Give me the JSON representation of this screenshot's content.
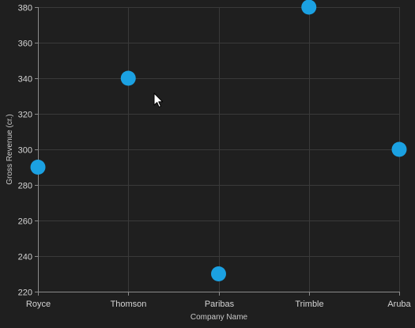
{
  "chart_data": {
    "type": "scatter",
    "xlabel": "Company Name",
    "ylabel": "Gross Revenue (cr.)",
    "categories": [
      "Royce",
      "Thomson",
      "Paribas",
      "Trimble",
      "Aruba"
    ],
    "values": [
      290,
      340,
      230,
      380,
      300
    ],
    "ylim": [
      220,
      380
    ],
    "yticks": [
      220,
      240,
      260,
      280,
      300,
      320,
      340,
      360,
      380
    ],
    "grid": true,
    "point_color": "#1ba1e2",
    "background_color": "#1f1f1f"
  }
}
